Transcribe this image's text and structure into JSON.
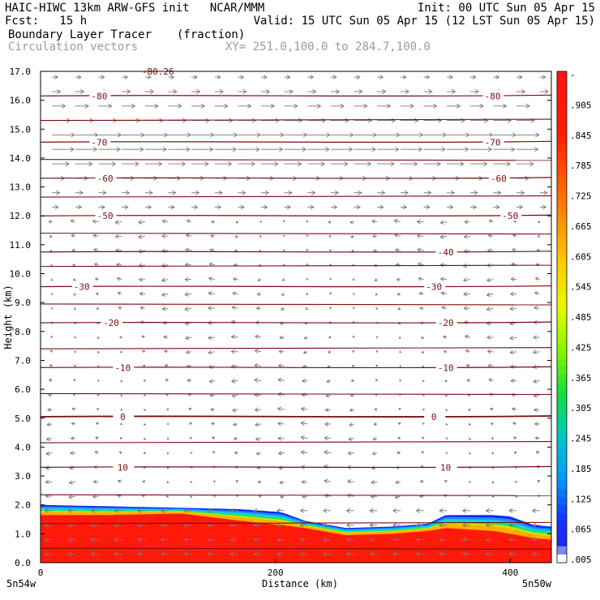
{
  "header": {
    "line1_left": "HAIC-HIWC 13km ARW-GFS init   NCAR/MMM",
    "line1_right": "Init: 00 UTC Sun 05 Apr 15",
    "line2_left": "Fcst:   15 h",
    "line2_right": "Valid: 15 UTC Sun 05 Apr 15 (12 LST Sun 05 Apr 15)",
    "line3_left": "Boundary Layer Tracer",
    "line3_units": "(fraction)",
    "line4_left": "Circulation vectors",
    "line4_right": "XY= 251.0,100.0 to 284.7,100.0"
  },
  "chart_data": {
    "type": "cross-section",
    "xlabel": "Distance (km)",
    "ylabel": "Height (km)",
    "xlim": [
      0,
      435
    ],
    "ylim": [
      0,
      17
    ],
    "x_ticks": [
      0,
      200,
      400
    ],
    "x_tick_labels": [
      "0",
      "200",
      "400"
    ],
    "x_end_labels": {
      "left": "5n54w",
      "right": "5n50w"
    },
    "y_ticks": [
      0,
      1,
      2,
      3,
      4,
      5,
      6,
      7,
      8,
      9,
      10,
      11,
      12,
      13,
      14,
      15,
      16,
      17
    ],
    "y_tick_labels": [
      "0.0",
      "1.0",
      "2.0",
      "3.0",
      "4.0",
      "5.0",
      "6.0",
      "7.0",
      "8.0",
      "9.0",
      "10.0",
      "11.0",
      "12.0",
      "13.0",
      "14.0",
      "15.0",
      "16.0",
      "17.0"
    ],
    "tracer_top": {
      "x": [
        0,
        60,
        120,
        170,
        205,
        225,
        260,
        300,
        330,
        345,
        385,
        400,
        420,
        435
      ],
      "top": [
        2.0,
        1.95,
        1.9,
        1.85,
        1.75,
        1.45,
        1.2,
        1.25,
        1.35,
        1.65,
        1.65,
        1.6,
        1.3,
        1.25
      ],
      "red_top": [
        1.65,
        1.65,
        1.7,
        1.45,
        1.3,
        1.2,
        0.95,
        1.0,
        1.1,
        1.2,
        1.1,
        1.0,
        0.85,
        0.8
      ]
    },
    "temperature_contours": [
      {
        "label": "-80",
        "y": 16.15,
        "label_x": [
          50,
          385
        ]
      },
      {
        "label": "-70",
        "y": 14.55,
        "label_x": [
          50,
          385
        ]
      },
      {
        "label": "-60",
        "y": 13.3,
        "label_x": [
          55,
          390
        ]
      },
      {
        "label": "-50",
        "y": 12.0,
        "label_x": [
          55,
          400
        ]
      },
      {
        "label": "-40",
        "y": 10.75,
        "label_x": [
          345
        ]
      },
      {
        "label": "-30",
        "y": 9.55,
        "label_x": [
          35,
          335
        ]
      },
      {
        "label": "-20",
        "y": 8.3,
        "label_x": [
          60,
          345
        ]
      },
      {
        "label": "-10",
        "y": 6.75,
        "label_x": [
          70,
          345
        ]
      },
      {
        "label": "0",
        "y": 5.05,
        "label_x": [
          70,
          335
        ]
      },
      {
        "label": "10",
        "y": 3.3,
        "label_x": [
          70,
          345
        ]
      }
    ],
    "top_partial_label": "-80.26",
    "colorbar": {
      "labels": [
        "-",
        ".905",
        ".845",
        ".785",
        ".725",
        ".665",
        ".605",
        ".545",
        ".485",
        ".425",
        ".365",
        ".305",
        ".245",
        ".185",
        ".125",
        ".065",
        ".005"
      ],
      "colors": [
        "#ff1a1a",
        "#ff2200",
        "#ff4400",
        "#ff6600",
        "#ff8800",
        "#ffaa00",
        "#ffcc00",
        "#ffee00",
        "#ccff00",
        "#88ff00",
        "#44ee00",
        "#00dd44",
        "#00ccaa",
        "#00bbee",
        "#0088ff",
        "#0044ff",
        "#ffffff"
      ]
    },
    "vectors": "circulation vectors; strong eastward flow 12-16 km, weak westward flow below"
  }
}
